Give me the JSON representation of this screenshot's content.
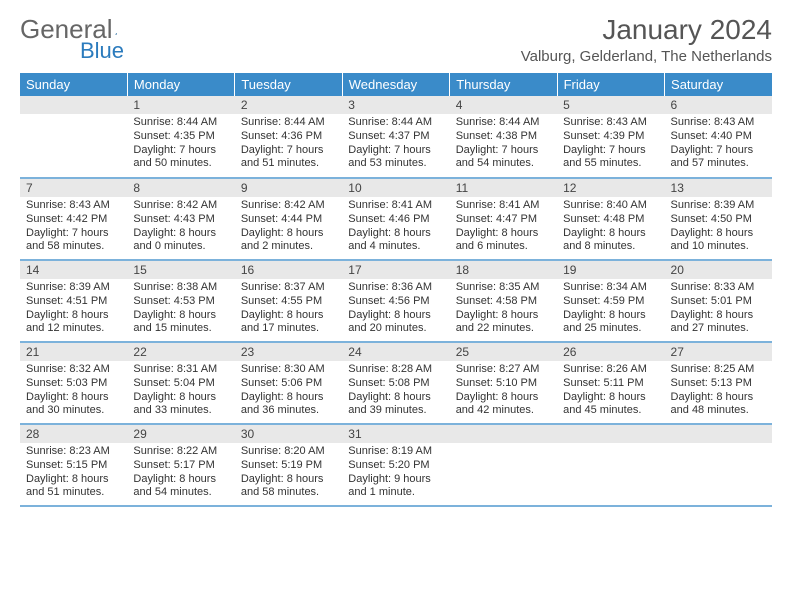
{
  "logo": {
    "text1": "General",
    "text2": "Blue"
  },
  "title": "January 2024",
  "subtitle": "Valburg, Gelderland, The Netherlands",
  "colors": {
    "header_bg": "#3a8bc9",
    "header_text": "#ffffff",
    "daynum_bg": "#e8e8e8",
    "text": "#333333",
    "logo_gray": "#666666",
    "logo_blue": "#2b7bbd",
    "border": "#3a8bc9"
  },
  "calendar": {
    "type": "table",
    "columns": [
      "Sunday",
      "Monday",
      "Tuesday",
      "Wednesday",
      "Thursday",
      "Friday",
      "Saturday"
    ],
    "weeks": [
      [
        {
          "day": "",
          "sunrise": "",
          "sunset": "",
          "daylight": ""
        },
        {
          "day": "1",
          "sunrise": "Sunrise: 8:44 AM",
          "sunset": "Sunset: 4:35 PM",
          "daylight": "Daylight: 7 hours and 50 minutes."
        },
        {
          "day": "2",
          "sunrise": "Sunrise: 8:44 AM",
          "sunset": "Sunset: 4:36 PM",
          "daylight": "Daylight: 7 hours and 51 minutes."
        },
        {
          "day": "3",
          "sunrise": "Sunrise: 8:44 AM",
          "sunset": "Sunset: 4:37 PM",
          "daylight": "Daylight: 7 hours and 53 minutes."
        },
        {
          "day": "4",
          "sunrise": "Sunrise: 8:44 AM",
          "sunset": "Sunset: 4:38 PM",
          "daylight": "Daylight: 7 hours and 54 minutes."
        },
        {
          "day": "5",
          "sunrise": "Sunrise: 8:43 AM",
          "sunset": "Sunset: 4:39 PM",
          "daylight": "Daylight: 7 hours and 55 minutes."
        },
        {
          "day": "6",
          "sunrise": "Sunrise: 8:43 AM",
          "sunset": "Sunset: 4:40 PM",
          "daylight": "Daylight: 7 hours and 57 minutes."
        }
      ],
      [
        {
          "day": "7",
          "sunrise": "Sunrise: 8:43 AM",
          "sunset": "Sunset: 4:42 PM",
          "daylight": "Daylight: 7 hours and 58 minutes."
        },
        {
          "day": "8",
          "sunrise": "Sunrise: 8:42 AM",
          "sunset": "Sunset: 4:43 PM",
          "daylight": "Daylight: 8 hours and 0 minutes."
        },
        {
          "day": "9",
          "sunrise": "Sunrise: 8:42 AM",
          "sunset": "Sunset: 4:44 PM",
          "daylight": "Daylight: 8 hours and 2 minutes."
        },
        {
          "day": "10",
          "sunrise": "Sunrise: 8:41 AM",
          "sunset": "Sunset: 4:46 PM",
          "daylight": "Daylight: 8 hours and 4 minutes."
        },
        {
          "day": "11",
          "sunrise": "Sunrise: 8:41 AM",
          "sunset": "Sunset: 4:47 PM",
          "daylight": "Daylight: 8 hours and 6 minutes."
        },
        {
          "day": "12",
          "sunrise": "Sunrise: 8:40 AM",
          "sunset": "Sunset: 4:48 PM",
          "daylight": "Daylight: 8 hours and 8 minutes."
        },
        {
          "day": "13",
          "sunrise": "Sunrise: 8:39 AM",
          "sunset": "Sunset: 4:50 PM",
          "daylight": "Daylight: 8 hours and 10 minutes."
        }
      ],
      [
        {
          "day": "14",
          "sunrise": "Sunrise: 8:39 AM",
          "sunset": "Sunset: 4:51 PM",
          "daylight": "Daylight: 8 hours and 12 minutes."
        },
        {
          "day": "15",
          "sunrise": "Sunrise: 8:38 AM",
          "sunset": "Sunset: 4:53 PM",
          "daylight": "Daylight: 8 hours and 15 minutes."
        },
        {
          "day": "16",
          "sunrise": "Sunrise: 8:37 AM",
          "sunset": "Sunset: 4:55 PM",
          "daylight": "Daylight: 8 hours and 17 minutes."
        },
        {
          "day": "17",
          "sunrise": "Sunrise: 8:36 AM",
          "sunset": "Sunset: 4:56 PM",
          "daylight": "Daylight: 8 hours and 20 minutes."
        },
        {
          "day": "18",
          "sunrise": "Sunrise: 8:35 AM",
          "sunset": "Sunset: 4:58 PM",
          "daylight": "Daylight: 8 hours and 22 minutes."
        },
        {
          "day": "19",
          "sunrise": "Sunrise: 8:34 AM",
          "sunset": "Sunset: 4:59 PM",
          "daylight": "Daylight: 8 hours and 25 minutes."
        },
        {
          "day": "20",
          "sunrise": "Sunrise: 8:33 AM",
          "sunset": "Sunset: 5:01 PM",
          "daylight": "Daylight: 8 hours and 27 minutes."
        }
      ],
      [
        {
          "day": "21",
          "sunrise": "Sunrise: 8:32 AM",
          "sunset": "Sunset: 5:03 PM",
          "daylight": "Daylight: 8 hours and 30 minutes."
        },
        {
          "day": "22",
          "sunrise": "Sunrise: 8:31 AM",
          "sunset": "Sunset: 5:04 PM",
          "daylight": "Daylight: 8 hours and 33 minutes."
        },
        {
          "day": "23",
          "sunrise": "Sunrise: 8:30 AM",
          "sunset": "Sunset: 5:06 PM",
          "daylight": "Daylight: 8 hours and 36 minutes."
        },
        {
          "day": "24",
          "sunrise": "Sunrise: 8:28 AM",
          "sunset": "Sunset: 5:08 PM",
          "daylight": "Daylight: 8 hours and 39 minutes."
        },
        {
          "day": "25",
          "sunrise": "Sunrise: 8:27 AM",
          "sunset": "Sunset: 5:10 PM",
          "daylight": "Daylight: 8 hours and 42 minutes."
        },
        {
          "day": "26",
          "sunrise": "Sunrise: 8:26 AM",
          "sunset": "Sunset: 5:11 PM",
          "daylight": "Daylight: 8 hours and 45 minutes."
        },
        {
          "day": "27",
          "sunrise": "Sunrise: 8:25 AM",
          "sunset": "Sunset: 5:13 PM",
          "daylight": "Daylight: 8 hours and 48 minutes."
        }
      ],
      [
        {
          "day": "28",
          "sunrise": "Sunrise: 8:23 AM",
          "sunset": "Sunset: 5:15 PM",
          "daylight": "Daylight: 8 hours and 51 minutes."
        },
        {
          "day": "29",
          "sunrise": "Sunrise: 8:22 AM",
          "sunset": "Sunset: 5:17 PM",
          "daylight": "Daylight: 8 hours and 54 minutes."
        },
        {
          "day": "30",
          "sunrise": "Sunrise: 8:20 AM",
          "sunset": "Sunset: 5:19 PM",
          "daylight": "Daylight: 8 hours and 58 minutes."
        },
        {
          "day": "31",
          "sunrise": "Sunrise: 8:19 AM",
          "sunset": "Sunset: 5:20 PM",
          "daylight": "Daylight: 9 hours and 1 minute."
        },
        {
          "day": "",
          "sunrise": "",
          "sunset": "",
          "daylight": ""
        },
        {
          "day": "",
          "sunrise": "",
          "sunset": "",
          "daylight": ""
        },
        {
          "day": "",
          "sunrise": "",
          "sunset": "",
          "daylight": ""
        }
      ]
    ]
  }
}
